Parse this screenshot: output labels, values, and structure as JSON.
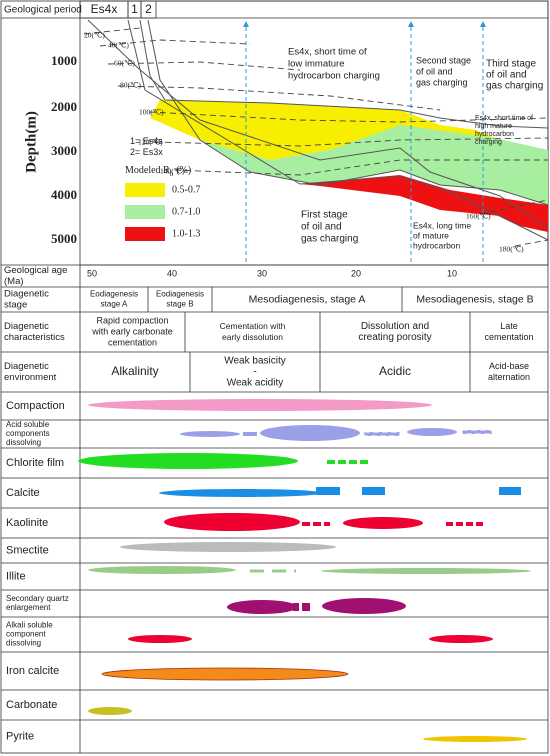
{
  "header": {
    "period_label": "Geological period",
    "periods": [
      "Es4x",
      "1",
      "2"
    ]
  },
  "burial": {
    "y_axis_label": "Depth(m)",
    "depth_ticks": [
      "1000",
      "2000",
      "3000",
      "4000",
      "5000"
    ],
    "temperatures": [
      "20(℃)",
      "40(℃)",
      "60(℃)",
      "80(℃)",
      "100(℃)",
      "120(℃)",
      "140(℃)",
      "160(℃)",
      "180(℃)"
    ],
    "formation_key": [
      "1= Es4s",
      "2= Es3x"
    ],
    "legend": {
      "title": [
        "Modeled R",
        "o",
        "(%)"
      ],
      "items": [
        "0.5-0.7",
        "0.7-1.0",
        "1.0-1.3"
      ]
    },
    "annotations": [
      [
        "Es4x, short time of",
        "low immature",
        "hydrocarbon charging"
      ],
      [
        "Second stage",
        "of oil and",
        "gas charging"
      ],
      [
        "Third stage",
        "of oil and",
        "gas charging"
      ],
      [
        "Es4x, short time of",
        "high mature",
        "hydrocarbon",
        "charging"
      ],
      [
        "First stage",
        "of oil and",
        "gas charging"
      ],
      [
        "Es4x, long time",
        "of mature",
        "hydrocarbon"
      ]
    ]
  },
  "age": {
    "label": [
      "Geological age",
      "(Ma)"
    ],
    "ticks": [
      "50",
      "40",
      "30",
      "20",
      "10"
    ]
  },
  "stage": {
    "label": [
      "Diagenetic",
      "stage"
    ],
    "cells": [
      [
        "Eodiagenesis",
        "stage A"
      ],
      [
        "Eodiagenesis",
        "stage B"
      ],
      "Mesodiagenesis, stage A",
      "Mesodiagenesis, stage B"
    ]
  },
  "characteristics": {
    "label": [
      "Diagenetic",
      "characteristics"
    ],
    "cells": [
      [
        "Rapid compaction",
        "with early carbonate",
        "cementation"
      ],
      [
        "Cementation with",
        "early dissolution"
      ],
      [
        "Dissolution and",
        "creating porosity"
      ],
      [
        "Late",
        "cementation"
      ]
    ]
  },
  "environment": {
    "label": [
      "Diagenetic",
      "environment"
    ],
    "cells": [
      "Alkalinity",
      [
        "Weak basicity",
        "-",
        "Weak acidity"
      ],
      "Acidic",
      [
        "Acid-base",
        "alternation"
      ]
    ]
  },
  "processes": [
    "Compaction",
    [
      "Acid soluble",
      "components",
      "dissolving"
    ],
    "Chlorite film",
    "Calcite",
    "Kaolinite",
    "Smectite",
    "Illite",
    [
      "Secondary quartz",
      "enlargement"
    ],
    [
      "Alkali soluble",
      "component",
      "dissolving"
    ],
    "Iron calcite",
    "Carbonate",
    "Pyrite"
  ]
}
